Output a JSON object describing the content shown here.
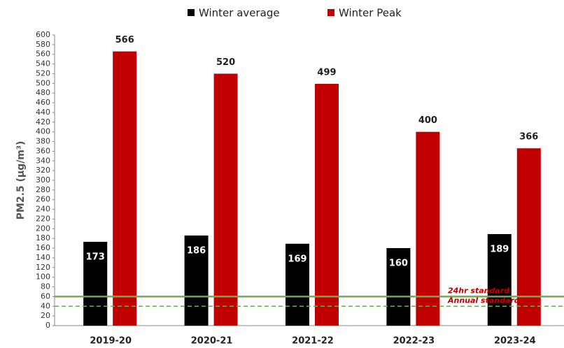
{
  "chart_data": {
    "type": "bar",
    "ylabel": "PM2.5 (µg/m³)",
    "categories": [
      "2019-20",
      "2020-21",
      "2021-22",
      "2022-23",
      "2023-24"
    ],
    "series": [
      {
        "name": "Winter average",
        "color": "#000000",
        "values": [
          173,
          186,
          169,
          160,
          189
        ]
      },
      {
        "name": "Winter Peak",
        "color": "#c00000",
        "values": [
          566,
          520,
          499,
          400,
          366
        ]
      }
    ],
    "reference_lines": [
      {
        "label": "24hr standard",
        "value": 60,
        "color": "#70ad47",
        "style": "solid"
      },
      {
        "label": "Annual standard",
        "value": 40,
        "color": "#70ad47",
        "style": "dashed"
      }
    ],
    "ylim": [
      0,
      600
    ],
    "yticks": [
      0,
      20,
      40,
      60,
      80,
      100,
      120,
      140,
      160,
      180,
      200,
      220,
      240,
      260,
      280,
      300,
      320,
      340,
      360,
      380,
      400,
      420,
      440,
      460,
      480,
      500,
      520,
      540,
      560,
      580,
      600
    ],
    "grid": false,
    "legend": "top"
  }
}
